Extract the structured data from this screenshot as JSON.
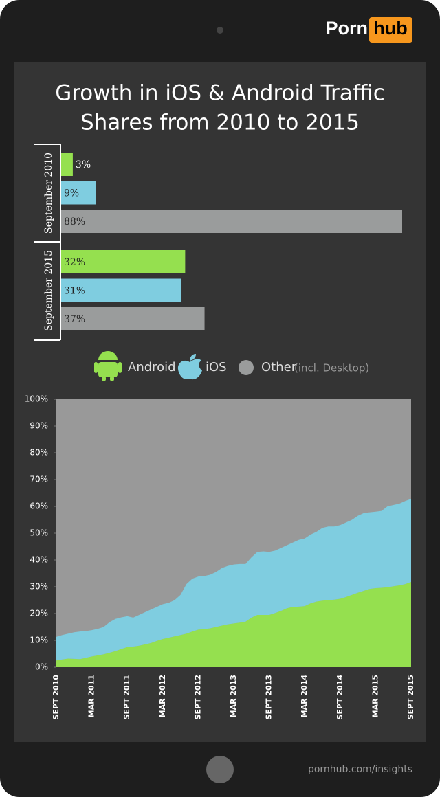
{
  "brand": {
    "left": "Porn",
    "right": "hub"
  },
  "footer": "pornhub.com/insights",
  "chart_data": [
    {
      "type": "bar",
      "orientation": "horizontal",
      "title": [
        "Growth in iOS & Android Traffic",
        "Shares from 2010 to 2015"
      ],
      "categories": [
        "September 2010",
        "September 2015"
      ],
      "series": [
        {
          "name": "Android",
          "color": "#95e04f",
          "values": [
            3,
            32
          ],
          "value_labels": [
            "3%",
            "32%"
          ]
        },
        {
          "name": "iOS",
          "color": "#7fcde0",
          "values": [
            9,
            31
          ],
          "value_labels": [
            "9%",
            "31%"
          ]
        },
        {
          "name": "Other",
          "color": "#9a9c9c",
          "values": [
            88,
            37
          ],
          "value_labels": [
            "88%",
            "37%"
          ]
        }
      ],
      "legend_note": "(incl. Desktop)"
    },
    {
      "type": "area",
      "stacked": true,
      "background": "#999999",
      "categories": [
        "SEPT 2010",
        null,
        null,
        null,
        null,
        null,
        "MAR 2011",
        null,
        null,
        null,
        null,
        null,
        "SEPT 2011",
        null,
        null,
        null,
        null,
        null,
        "MAR 2012",
        null,
        null,
        null,
        null,
        null,
        "SEPT 2012",
        null,
        null,
        null,
        null,
        null,
        "MAR 2013",
        null,
        null,
        null,
        null,
        null,
        "SEPT 2013",
        null,
        null,
        null,
        null,
        null,
        "MAR 2014",
        null,
        null,
        null,
        null,
        null,
        "SEPT 2014",
        null,
        null,
        null,
        null,
        null,
        "MAR 2015",
        null,
        null,
        null,
        null,
        null,
        "SEPT 2015"
      ],
      "series": [
        {
          "name": "Android",
          "color": "#95e04f",
          "values": [
            2.5,
            2.9,
            3.2,
            3.1,
            3.0,
            3.5,
            4.0,
            4.4,
            4.8,
            5.4,
            6.0,
            6.8,
            7.5,
            7.7,
            8.0,
            8.5,
            9.0,
            9.8,
            10.5,
            11.0,
            11.5,
            12.0,
            12.5,
            13.3,
            14.0,
            14.2,
            14.5,
            15.0,
            15.5,
            16.0,
            16.3,
            16.6,
            17.0,
            18.5,
            19.5,
            19.5,
            19.5,
            20.2,
            21.0,
            22.0,
            22.5,
            22.6,
            22.8,
            23.8,
            24.5,
            24.8,
            25.0,
            25.2,
            25.5,
            26.2,
            27.0,
            27.8,
            28.5,
            29.2,
            29.5,
            29.6,
            29.8,
            30.2,
            30.5,
            31.0,
            31.8
          ]
        },
        {
          "name": "iOS",
          "color": "#7fcde0",
          "values": [
            8.8,
            9.1,
            9.3,
            9.9,
            10.3,
            10.0,
            9.8,
            9.9,
            10.2,
            11.4,
            12.0,
            11.8,
            11.5,
            10.8,
            11.5,
            12.0,
            12.5,
            12.7,
            13.0,
            13.0,
            13.5,
            15.0,
            18.5,
            19.7,
            19.8,
            19.8,
            20.0,
            20.5,
            21.5,
            21.8,
            22.0,
            21.9,
            21.5,
            22.5,
            23.5,
            23.7,
            23.5,
            23.3,
            23.5,
            23.5,
            24.0,
            24.9,
            25.2,
            25.7,
            26.0,
            27.2,
            27.5,
            27.3,
            27.5,
            27.8,
            28.0,
            28.7,
            29.0,
            28.6,
            28.5,
            28.7,
            30.2,
            30.3,
            30.5,
            31.0,
            31.0
          ]
        }
      ],
      "ylim": [
        0,
        100
      ],
      "yticks": [
        {
          "value": 0,
          "label": "0%"
        },
        {
          "value": 10,
          "label": "10%"
        },
        {
          "value": 20,
          "label": "20%"
        },
        {
          "value": 30,
          "label": "30%"
        },
        {
          "value": 40,
          "label": "40%"
        },
        {
          "value": 50,
          "label": "50%"
        },
        {
          "value": 60,
          "label": "60%"
        },
        {
          "value": 70,
          "label": "70%"
        },
        {
          "value": 80,
          "label": "80%"
        },
        {
          "value": 90,
          "label": "90%"
        },
        {
          "value": 100,
          "label": "100%"
        }
      ]
    }
  ]
}
